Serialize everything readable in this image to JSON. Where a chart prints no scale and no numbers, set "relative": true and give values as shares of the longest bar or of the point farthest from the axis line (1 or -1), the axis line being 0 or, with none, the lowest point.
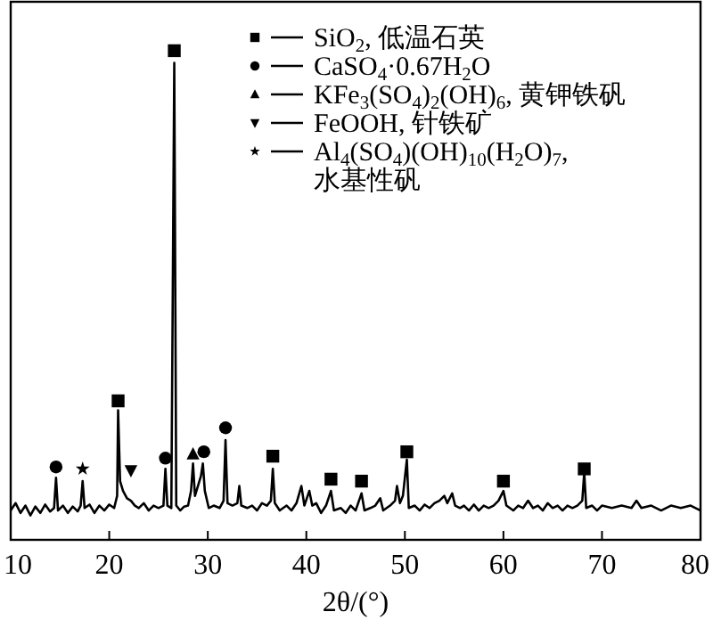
{
  "chart_data": {
    "type": "line",
    "relative": true,
    "xlabel": "2θ/(°)",
    "xlim": [
      10,
      80
    ],
    "xticks": [
      10,
      20,
      30,
      40,
      50,
      60,
      70,
      80
    ],
    "legend": "top right",
    "series": [
      {
        "color": "#000000",
        "marker": "none",
        "x": [
          10.0,
          10.5,
          11,
          11.5,
          12,
          12.5,
          13,
          13.5,
          14,
          14.4,
          14.6,
          14.8,
          15.3,
          15.8,
          16.3,
          16.8,
          17.1,
          17.3,
          17.5,
          18,
          18.5,
          19,
          19.5,
          20,
          20.5,
          20.8,
          20.9,
          21.1,
          21.4,
          21.8,
          22.2,
          22.6,
          23,
          23.5,
          24,
          24.5,
          25,
          25.5,
          25.7,
          25.9,
          26.3,
          26.6,
          26.8,
          27.2,
          27.6,
          28,
          28.3,
          28.5,
          28.7,
          29,
          29.3,
          29.5,
          29.7,
          30.1,
          30.6,
          31.2,
          31.6,
          31.8,
          32,
          32.5,
          33,
          33.2,
          33.4,
          34,
          34.5,
          35,
          35.5,
          36,
          36.4,
          36.6,
          36.8,
          37.3,
          38,
          38.5,
          39,
          39.5,
          39.8,
          40.3,
          40.6,
          41,
          41.5,
          42,
          42.5,
          42.8,
          43.5,
          44,
          44.5,
          45,
          45.6,
          45.9,
          46.5,
          47,
          47.5,
          47.8,
          48.5,
          49,
          49.2,
          49.5,
          49.8,
          50.2,
          50.4,
          51,
          51.5,
          52,
          52.5,
          53,
          53.5,
          54,
          54.3,
          54.8,
          55.1,
          55.6,
          56,
          56.5,
          57,
          57.5,
          58,
          58.5,
          59,
          59.5,
          60,
          60.3,
          61,
          61.5,
          62,
          62.5,
          63,
          63.5,
          64,
          64.5,
          65,
          65.5,
          66,
          66.5,
          67,
          67.5,
          68,
          68.2,
          68.4,
          69,
          69.5,
          70,
          71,
          72,
          73,
          73.5,
          74,
          75,
          76,
          77,
          78,
          79,
          80
        ],
        "values": [
          0.06,
          0.075,
          0.055,
          0.07,
          0.05,
          0.068,
          0.055,
          0.072,
          0.058,
          0.065,
          0.127,
          0.06,
          0.07,
          0.055,
          0.068,
          0.058,
          0.07,
          0.12,
          0.065,
          0.072,
          0.055,
          0.07,
          0.06,
          0.072,
          0.065,
          0.09,
          0.265,
          0.12,
          0.1,
          0.085,
          0.08,
          0.07,
          0.065,
          0.075,
          0.06,
          0.07,
          0.065,
          0.07,
          0.145,
          0.07,
          0.065,
          0.975,
          0.07,
          0.06,
          0.068,
          0.07,
          0.1,
          0.156,
          0.09,
          0.11,
          0.13,
          0.156,
          0.1,
          0.065,
          0.07,
          0.065,
          0.08,
          0.204,
          0.075,
          0.07,
          0.075,
          0.11,
          0.07,
          0.065,
          0.07,
          0.06,
          0.075,
          0.07,
          0.08,
          0.145,
          0.075,
          0.06,
          0.07,
          0.06,
          0.075,
          0.11,
          0.07,
          0.1,
          0.07,
          0.075,
          0.055,
          0.07,
          0.1,
          0.06,
          0.065,
          0.055,
          0.07,
          0.06,
          0.095,
          0.06,
          0.065,
          0.07,
          0.085,
          0.06,
          0.07,
          0.08,
          0.11,
          0.075,
          0.09,
          0.164,
          0.065,
          0.07,
          0.06,
          0.072,
          0.065,
          0.075,
          0.08,
          0.09,
          0.075,
          0.095,
          0.07,
          0.065,
          0.07,
          0.06,
          0.072,
          0.06,
          0.07,
          0.065,
          0.07,
          0.08,
          0.1,
          0.07,
          0.06,
          0.07,
          0.065,
          0.08,
          0.065,
          0.07,
          0.06,
          0.075,
          0.065,
          0.07,
          0.06,
          0.07,
          0.065,
          0.07,
          0.08,
          0.138,
          0.065,
          0.07,
          0.06,
          0.07,
          0.065,
          0.07,
          0.065,
          0.08,
          0.065,
          0.07,
          0.06,
          0.07,
          0.065,
          0.07,
          0.06
        ]
      },
      {
        "type": "scatter",
        "name": "SiO$_{2}$, 低温石英",
        "color": "#000000",
        "marker": "square",
        "x": [
          20.9,
          26.6,
          36.6,
          42.5,
          45.6,
          50.2,
          60,
          68.2
        ],
        "values": [
          0.284,
          1.0,
          0.171,
          0.124,
          0.12,
          0.18,
          0.12,
          0.145
        ]
      },
      {
        "type": "scatter",
        "name": "CaSO$_{4}$·0.67H$_{2}$O",
        "color": "#000000",
        "marker": "circle",
        "x": [
          14.6,
          25.7,
          29.6,
          31.8
        ],
        "values": [
          0.149,
          0.167,
          0.18,
          0.229
        ]
      },
      {
        "type": "scatter",
        "name": "KFe$_{3}$(SO$_{4}$)$_{2}$(OH)$_{6}$, 黄钾铁矾",
        "color": "#000000",
        "marker": "triangle",
        "x": [
          28.5
        ],
        "values": [
          0.175
        ]
      },
      {
        "type": "scatter",
        "name": "FeOOH, 针铁矿",
        "color": "#000000",
        "marker": "triangle-down",
        "x": [
          22.2
        ],
        "values": [
          0.142
        ]
      },
      {
        "type": "scatter",
        "name": "Al$_{4}$(SO$_{4}$)(OH)$_{10}$(H$_{2}$O)$_{7}$,\n水基性矾",
        "color": "#000000",
        "marker": "star",
        "x": [
          17.3
        ],
        "values": [
          0.145
        ]
      }
    ]
  }
}
